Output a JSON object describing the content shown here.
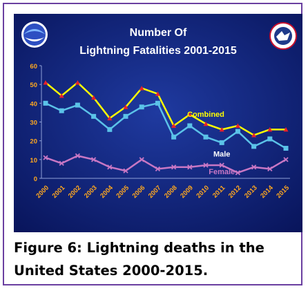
{
  "figure": {
    "caption": "Figure 6: Lightning deaths in the United States 2000-2015."
  },
  "chart_data": {
    "type": "line",
    "title_line1": "Number Of",
    "title_line2": "Lightning Fatalities 2001-2015",
    "categories": [
      "2000",
      "2001",
      "2002",
      "2003",
      "2004",
      "2005",
      "2006",
      "2007",
      "2008",
      "2009",
      "2010",
      "2011",
      "2012",
      "2013",
      "2014",
      "2015"
    ],
    "ylim": [
      0,
      60
    ],
    "yticks": [
      0,
      10,
      20,
      30,
      40,
      50,
      60
    ],
    "grid": false,
    "series": [
      {
        "name": "Combined",
        "color": "#ffff00",
        "marker_color": "#e8202a",
        "marker": "triangle",
        "values": [
          51,
          44,
          51,
          43,
          32,
          38,
          48,
          45,
          28,
          34,
          29,
          26,
          28,
          23,
          26,
          26
        ]
      },
      {
        "name": "Male",
        "color": "#5bc2e8",
        "marker_color": "#5bc2e8",
        "marker": "square",
        "values": [
          40,
          36,
          39,
          33,
          26,
          33,
          38,
          40,
          22,
          28,
          22,
          19,
          25,
          17,
          21,
          16
        ]
      },
      {
        "name": "Female",
        "color": "#c877c4",
        "marker_color": "#c877c4",
        "marker": "x",
        "values": [
          11,
          8,
          12,
          10,
          6,
          4,
          10,
          5,
          6,
          6,
          7,
          7,
          3,
          6,
          5,
          10
        ]
      }
    ],
    "colors": {
      "background": "#0a1a6e",
      "axis_text": "#ffa81f",
      "title_text": "#ffffff"
    },
    "logos": {
      "left": "noaa-logo-icon",
      "right": "nws-logo-icon"
    }
  }
}
